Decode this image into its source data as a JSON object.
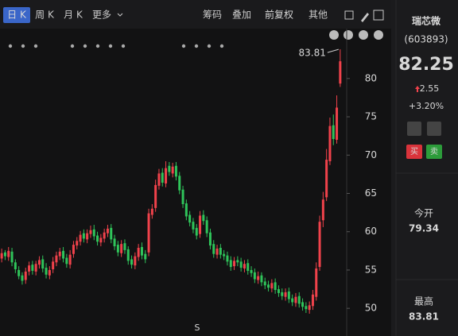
{
  "toolbar": {
    "tabs": [
      "日 K",
      "周 K",
      "月 K",
      "更多"
    ],
    "tools": [
      "筹码",
      "叠加",
      "前复权",
      "其他"
    ]
  },
  "quote": {
    "name": "瑞芯微",
    "code": "(603893)",
    "price": "82.25",
    "change": "2.55",
    "change_pct": "+3.20%",
    "buy": "买",
    "sell": "卖",
    "open_label": "今开",
    "open": "79.34",
    "high_label": "最高",
    "high": "83.81"
  },
  "chart_data": {
    "type": "candlestick",
    "up_color": "#f0424b",
    "down_color": "#2fc45a",
    "grid": false,
    "ylim": [
      46.7,
      86.1
    ],
    "yticks": [
      50,
      55,
      60,
      65,
      70,
      75,
      80
    ],
    "annotations": [
      "83.81",
      "S"
    ],
    "open": [
      56.5,
      57.3,
      56.7,
      57.4,
      56.0,
      55.0,
      54.3,
      53.7,
      54.8,
      55.7,
      54.8,
      55.7,
      56.4,
      55.3,
      54.3,
      55.1,
      56.0,
      56.8,
      57.5,
      56.6,
      55.7,
      57.1,
      58.2,
      58.7,
      59.8,
      59.0,
      59.7,
      60.3,
      59.5,
      58.6,
      59.1,
      59.8,
      60.5,
      59.1,
      58.3,
      57.2,
      58.5,
      57.7,
      56.4,
      55.6,
      56.7,
      58.0,
      57.1,
      57.3,
      62.2,
      63.1,
      66.0,
      67.7,
      66.3,
      68.6,
      67.6,
      68.6,
      67.3,
      65.5,
      63.7,
      62.2,
      61.3,
      60.5,
      59.7,
      62.2,
      61.5,
      59.9,
      58.4,
      57.0,
      57.9,
      57.1,
      56.9,
      56.3,
      55.5,
      56.3,
      56.1,
      55.2,
      55.9,
      55.0,
      54.7,
      53.7,
      54.3,
      53.5,
      53.1,
      52.6,
      53.4,
      52.5,
      52.1,
      51.5,
      52.2,
      51.3,
      50.7,
      51.6,
      50.8,
      50.3,
      49.8,
      50.3,
      51.5,
      55.4,
      61.5,
      64.5,
      69.2,
      73.9,
      72.0,
      79.34
    ],
    "high": [
      57.8,
      57.6,
      58.0,
      57.9,
      56.4,
      55.5,
      54.7,
      55.3,
      56.1,
      56.2,
      56.2,
      56.8,
      56.9,
      55.9,
      55.5,
      56.7,
      57.4,
      57.9,
      58.0,
      57.1,
      57.6,
      58.8,
      59.3,
      60.1,
      60.3,
      60.3,
      60.8,
      60.9,
      60.0,
      59.7,
      60.4,
      60.9,
      61.0,
      59.6,
      58.8,
      58.9,
      59.0,
      58.1,
      56.9,
      57.3,
      58.4,
      58.6,
      57.6,
      63.0,
      63.6,
      66.8,
      68.2,
      68.3,
      69.2,
      69.1,
      69.0,
      69.1,
      67.8,
      66.0,
      64.2,
      62.7,
      61.8,
      61.0,
      62.7,
      62.8,
      62.0,
      60.4,
      58.9,
      58.3,
      58.4,
      57.6,
      57.4,
      56.8,
      56.7,
      56.8,
      56.6,
      56.3,
      56.4,
      55.5,
      55.2,
      54.8,
      54.7,
      54.0,
      53.6,
      53.8,
      53.9,
      53.0,
      52.6,
      52.6,
      52.7,
      51.8,
      52.0,
      52.1,
      51.3,
      50.8,
      50.9,
      52.4,
      56.0,
      62.1,
      65.2,
      70.8,
      74.9,
      75.3,
      77.8,
      83.81
    ],
    "low": [
      56.0,
      56.3,
      56.2,
      55.5,
      54.6,
      53.8,
      53.1,
      53.2,
      54.3,
      54.4,
      54.3,
      55.2,
      54.7,
      53.9,
      53.8,
      54.6,
      55.5,
      56.3,
      56.0,
      55.3,
      55.2,
      56.6,
      57.7,
      58.2,
      58.6,
      58.5,
      59.2,
      58.9,
      58.2,
      58.1,
      58.6,
      59.3,
      58.5,
      57.6,
      56.8,
      56.7,
      57.1,
      55.7,
      55.2,
      55.1,
      56.2,
      56.4,
      55.9,
      56.8,
      61.7,
      62.6,
      65.5,
      65.9,
      65.8,
      67.3,
      67.1,
      66.7,
      64.9,
      63.1,
      61.5,
      60.7,
      59.8,
      59.0,
      59.2,
      60.9,
      59.3,
      57.7,
      56.6,
      56.5,
      56.5,
      56.3,
      55.6,
      54.9,
      55.0,
      55.5,
      54.8,
      54.7,
      54.4,
      54.1,
      53.3,
      53.2,
      52.9,
      52.5,
      52.2,
      52.1,
      51.9,
      51.5,
      51.1,
      51.0,
      50.7,
      50.3,
      50.2,
      50.1,
      49.7,
      49.4,
      49.3,
      49.8,
      51.0,
      54.9,
      60.6,
      64.0,
      68.7,
      71.3,
      71.5,
      78.9
    ],
    "close": [
      57.2,
      56.8,
      57.5,
      56.0,
      55.1,
      54.2,
      53.6,
      54.8,
      55.6,
      54.9,
      55.8,
      56.3,
      55.2,
      54.4,
      55.0,
      56.1,
      56.9,
      57.4,
      56.5,
      55.8,
      57.0,
      58.3,
      58.8,
      59.6,
      59.1,
      59.8,
      60.2,
      59.4,
      58.7,
      59.2,
      59.9,
      60.4,
      59.0,
      58.1,
      57.3,
      58.4,
      57.6,
      56.2,
      55.7,
      56.8,
      57.9,
      56.9,
      56.4,
      62.4,
      63.0,
      66.1,
      67.6,
      66.4,
      68.3,
      67.8,
      68.5,
      67.2,
      65.4,
      63.6,
      62.0,
      61.2,
      60.3,
      59.5,
      62.1,
      61.4,
      59.8,
      58.2,
      57.1,
      57.8,
      57.0,
      56.8,
      56.1,
      55.4,
      56.2,
      56.0,
      55.3,
      55.8,
      54.9,
      54.6,
      53.8,
      54.2,
      53.4,
      53.0,
      52.7,
      53.3,
      52.4,
      52.0,
      51.6,
      52.1,
      51.2,
      50.8,
      51.5,
      50.6,
      50.2,
      49.9,
      50.4,
      51.8,
      55.2,
      61.3,
      64.2,
      69.4,
      73.8,
      72.1,
      76.2,
      82.25
    ]
  }
}
